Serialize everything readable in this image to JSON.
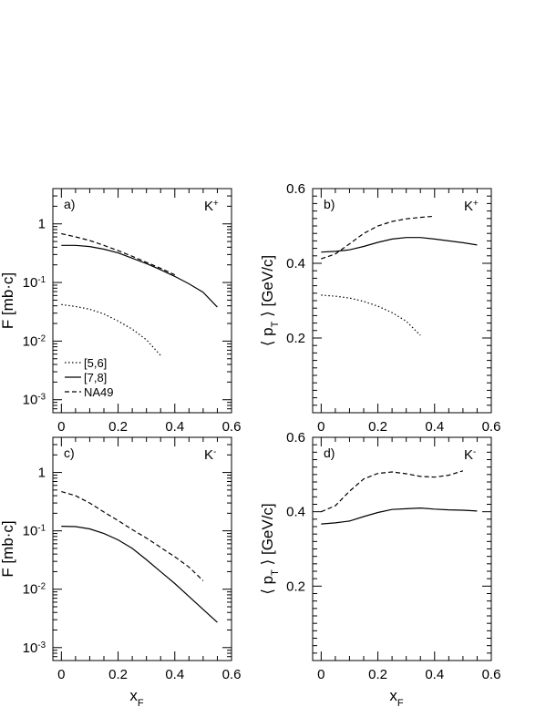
{
  "chart_data": [
    {
      "type": "line",
      "panel_label": "a)",
      "particle": {
        "base": "K",
        "sup": "+"
      },
      "ylabel": {
        "main": "F [mb·c]"
      },
      "yscale": "log",
      "ylim": [
        0.0006,
        4
      ],
      "xlim": [
        -0.03,
        0.6
      ],
      "xticks": [
        "0",
        "0.2",
        "0.4",
        "0.6"
      ],
      "yticks": [
        {
          "value": 1,
          "base": "1",
          "exp": ""
        },
        {
          "value": 0.1,
          "base": "10",
          "exp": "-1"
        },
        {
          "value": 0.01,
          "base": "10",
          "exp": "-2"
        },
        {
          "value": 0.001,
          "base": "10",
          "exp": "-3"
        }
      ],
      "series": [
        {
          "name": "[5,6]",
          "style": "dotted",
          "x": [
            0.0,
            0.05,
            0.1,
            0.15,
            0.2,
            0.25,
            0.3,
            0.35
          ],
          "y": [
            0.042,
            0.039,
            0.035,
            0.029,
            0.022,
            0.016,
            0.0105,
            0.0057
          ]
        },
        {
          "name": "[7,8]",
          "style": "solid",
          "x": [
            0.0,
            0.05,
            0.1,
            0.15,
            0.2,
            0.25,
            0.3,
            0.35,
            0.4,
            0.45,
            0.5,
            0.55
          ],
          "y": [
            0.43,
            0.43,
            0.41,
            0.37,
            0.32,
            0.26,
            0.21,
            0.165,
            0.127,
            0.095,
            0.068,
            0.038
          ]
        },
        {
          "name": "NA49",
          "style": "dashed",
          "x": [
            0.0,
            0.05,
            0.1,
            0.15,
            0.2,
            0.25,
            0.3,
            0.35,
            0.4
          ],
          "y": [
            0.68,
            0.6,
            0.52,
            0.43,
            0.35,
            0.28,
            0.22,
            0.175,
            0.135
          ]
        }
      ]
    },
    {
      "type": "line",
      "panel_label": "b)",
      "particle": {
        "base": "K",
        "sup": "+"
      },
      "ylabel": {
        "pre": "⟨ p",
        "sub": "T",
        "post": " ⟩ [GeV/c]"
      },
      "yscale": "linear",
      "ylim": [
        0,
        0.6
      ],
      "xlim": [
        -0.03,
        0.6
      ],
      "xticks": [
        "0",
        "0.2",
        "0.4",
        "0.6"
      ],
      "yticks": [
        {
          "value": 0.2,
          "base": "0.2",
          "exp": ""
        },
        {
          "value": 0.4,
          "base": "0.4",
          "exp": ""
        },
        {
          "value": 0.6,
          "base": "0.6",
          "exp": ""
        }
      ],
      "series": [
        {
          "name": "[5,6]",
          "style": "dotted",
          "x": [
            0.0,
            0.05,
            0.1,
            0.15,
            0.2,
            0.25,
            0.3,
            0.35
          ],
          "y": [
            0.315,
            0.312,
            0.307,
            0.298,
            0.285,
            0.268,
            0.245,
            0.207
          ]
        },
        {
          "name": "[7,8]",
          "style": "solid",
          "x": [
            0.0,
            0.05,
            0.1,
            0.15,
            0.2,
            0.25,
            0.3,
            0.35,
            0.4,
            0.45,
            0.5,
            0.55
          ],
          "y": [
            0.43,
            0.432,
            0.436,
            0.445,
            0.456,
            0.465,
            0.469,
            0.469,
            0.465,
            0.46,
            0.455,
            0.449
          ]
        },
        {
          "name": "NA49",
          "style": "dashed",
          "x": [
            0.0,
            0.05,
            0.1,
            0.15,
            0.2,
            0.25,
            0.3,
            0.35,
            0.4
          ],
          "y": [
            0.412,
            0.425,
            0.452,
            0.48,
            0.5,
            0.512,
            0.519,
            0.523,
            0.526
          ]
        }
      ]
    },
    {
      "type": "line",
      "panel_label": "c)",
      "particle": {
        "base": "K",
        "sup": "-"
      },
      "ylabel": {
        "main": "F [mb·c]"
      },
      "yscale": "log",
      "ylim": [
        0.0006,
        4
      ],
      "xlim": [
        -0.03,
        0.6
      ],
      "xticks": [
        "0",
        "0.2",
        "0.4",
        "0.6"
      ],
      "xlabel": {
        "base": "x",
        "sub": "F"
      },
      "yticks": [
        {
          "value": 1,
          "base": "1",
          "exp": ""
        },
        {
          "value": 0.1,
          "base": "10",
          "exp": "-1"
        },
        {
          "value": 0.01,
          "base": "10",
          "exp": "-2"
        },
        {
          "value": 0.001,
          "base": "10",
          "exp": "-3"
        }
      ],
      "series": [
        {
          "name": "[7,8]",
          "style": "solid",
          "x": [
            0.0,
            0.05,
            0.1,
            0.15,
            0.2,
            0.25,
            0.3,
            0.35,
            0.4,
            0.45,
            0.5,
            0.55
          ],
          "y": [
            0.12,
            0.118,
            0.108,
            0.09,
            0.07,
            0.05,
            0.032,
            0.02,
            0.0125,
            0.0075,
            0.0045,
            0.0027
          ]
        },
        {
          "name": "NA49",
          "style": "dashed",
          "x": [
            0.0,
            0.05,
            0.1,
            0.15,
            0.2,
            0.25,
            0.3,
            0.35,
            0.4,
            0.45,
            0.5
          ],
          "y": [
            0.47,
            0.4,
            0.3,
            0.21,
            0.15,
            0.105,
            0.075,
            0.052,
            0.036,
            0.024,
            0.014
          ]
        }
      ]
    },
    {
      "type": "line",
      "panel_label": "d)",
      "particle": {
        "base": "K",
        "sup": "-"
      },
      "ylabel": {
        "pre": "⟨ p",
        "sub": "T",
        "post": " ⟩ [GeV/c]"
      },
      "yscale": "linear",
      "ylim": [
        0,
        0.6
      ],
      "xlim": [
        -0.03,
        0.6
      ],
      "xticks": [
        "0",
        "0.2",
        "0.4",
        "0.6"
      ],
      "xlabel": {
        "base": "x",
        "sub": "F"
      },
      "yticks": [
        {
          "value": 0.2,
          "base": "0.2",
          "exp": ""
        },
        {
          "value": 0.4,
          "base": "0.4",
          "exp": ""
        },
        {
          "value": 0.6,
          "base": "0.6",
          "exp": ""
        }
      ],
      "series": [
        {
          "name": "[7,8]",
          "style": "solid",
          "x": [
            0.0,
            0.05,
            0.1,
            0.15,
            0.2,
            0.25,
            0.3,
            0.35,
            0.4,
            0.45,
            0.5,
            0.55
          ],
          "y": [
            0.367,
            0.37,
            0.375,
            0.387,
            0.398,
            0.406,
            0.408,
            0.41,
            0.407,
            0.405,
            0.404,
            0.402
          ]
        },
        {
          "name": "NA49",
          "style": "dashed",
          "x": [
            0.0,
            0.05,
            0.1,
            0.15,
            0.2,
            0.25,
            0.3,
            0.35,
            0.4,
            0.45,
            0.5
          ],
          "y": [
            0.4,
            0.416,
            0.455,
            0.488,
            0.503,
            0.507,
            0.502,
            0.495,
            0.493,
            0.498,
            0.51
          ]
        }
      ]
    }
  ],
  "legend": {
    "entries": [
      {
        "label": "[5,6]",
        "style": "dotted"
      },
      {
        "label": "[7,8]",
        "style": "solid"
      },
      {
        "label": "NA49",
        "style": "dashed"
      }
    ]
  }
}
